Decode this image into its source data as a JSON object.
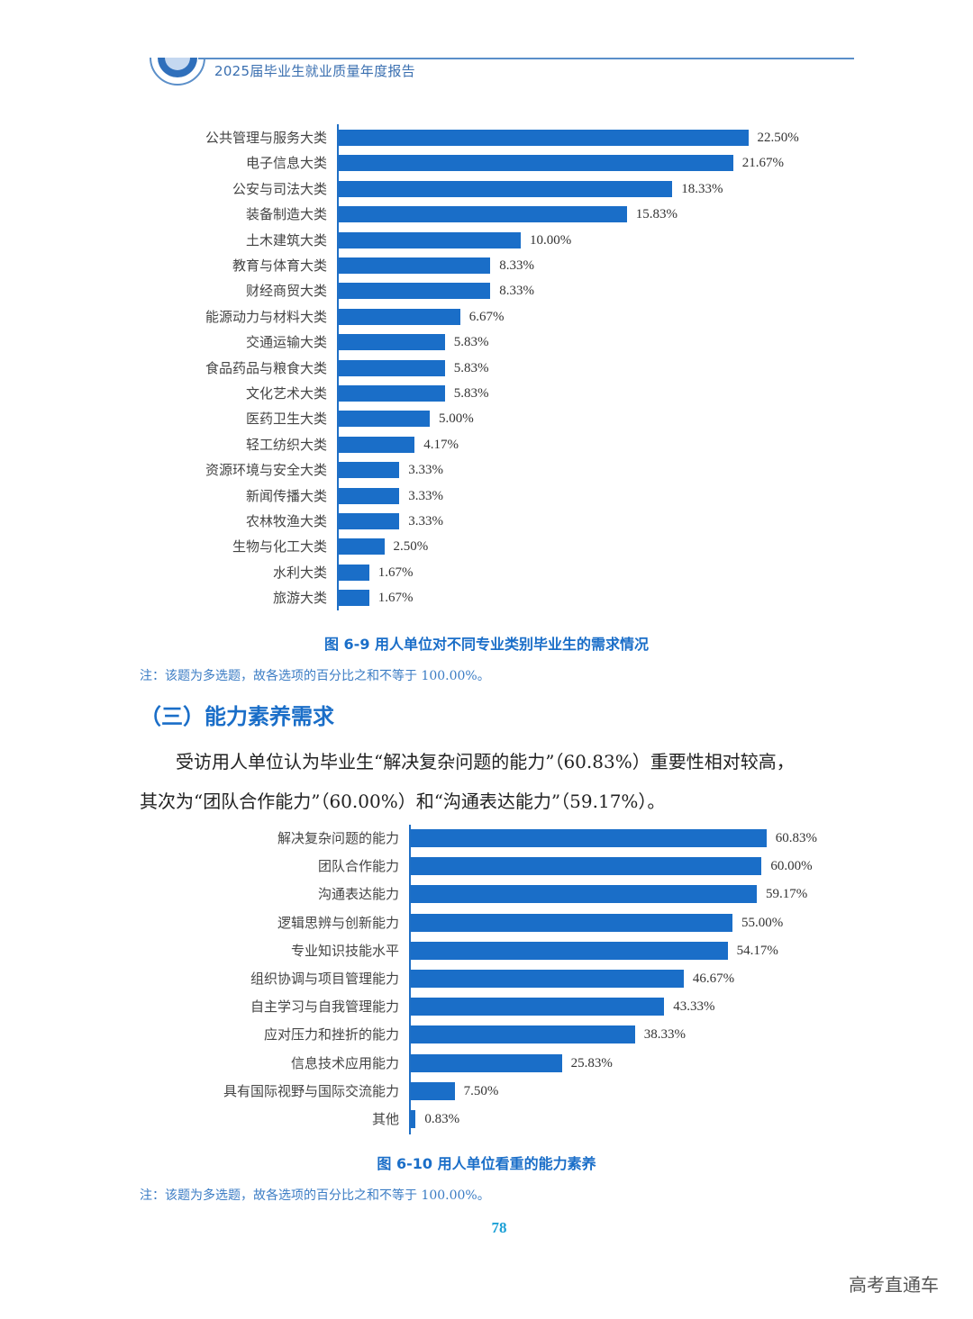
{
  "header": {
    "title": "2025届毕业生就业质量年度报告",
    "accent_color": "#1a6ec8"
  },
  "chart_data": [
    {
      "type": "bar",
      "orientation": "horizontal",
      "title": "图 6-9  用人单位对不同专业类别毕业生的需求情况",
      "xlabel": "",
      "ylabel": "",
      "grid": false,
      "legend": null,
      "categories": [
        "公共管理与服务大类",
        "电子信息大类",
        "公安与司法大类",
        "装备制造大类",
        "土木建筑大类",
        "教育与体育大类",
        "财经商贸大类",
        "能源动力与材料大类",
        "交通运输大类",
        "食品药品与粮食大类",
        "文化艺术大类",
        "医药卫生大类",
        "轻工纺织大类",
        "资源环境与安全大类",
        "新闻传播大类",
        "农林牧渔大类",
        "生物与化工大类",
        "水利大类",
        "旅游大类"
      ],
      "values": [
        22.5,
        21.67,
        18.33,
        15.83,
        10.0,
        8.33,
        8.33,
        6.67,
        5.83,
        5.83,
        5.83,
        5.0,
        4.17,
        3.33,
        3.33,
        3.33,
        2.5,
        1.67,
        1.67
      ],
      "labels": [
        "22.50%",
        "21.67%",
        "18.33%",
        "15.83%",
        "10.00%",
        "8.33%",
        "8.33%",
        "6.67%",
        "5.83%",
        "5.83%",
        "5.83%",
        "5.00%",
        "4.17%",
        "3.33%",
        "3.33%",
        "3.33%",
        "2.50%",
        "1.67%",
        "1.67%"
      ],
      "unit": "%",
      "color": "#1a6ec8"
    },
    {
      "type": "bar",
      "orientation": "horizontal",
      "title": "图 6-10  用人单位看重的能力素养",
      "xlabel": "",
      "ylabel": "",
      "grid": false,
      "legend": null,
      "categories": [
        "解决复杂问题的能力",
        "团队合作能力",
        "沟通表达能力",
        "逻辑思辨与创新能力",
        "专业知识技能水平",
        "组织协调与项目管理能力",
        "自主学习与自我管理能力",
        "应对压力和挫折的能力",
        "信息技术应用能力",
        "具有国际视野与国际交流能力",
        "其他"
      ],
      "values": [
        60.83,
        60.0,
        59.17,
        55.0,
        54.17,
        46.67,
        43.33,
        38.33,
        25.83,
        7.5,
        0.83
      ],
      "labels": [
        "60.83%",
        "60.00%",
        "59.17%",
        "55.00%",
        "54.17%",
        "46.67%",
        "43.33%",
        "38.33%",
        "25.83%",
        "7.50%",
        "0.83%"
      ],
      "unit": "%",
      "color": "#1a6ec8"
    }
  ],
  "figures": {
    "fig1_caption": "图 6-9  用人单位对不同专业类别毕业生的需求情况",
    "fig1_note": "注：该题为多选题，故各选项的百分比之和不等于 100.00%。",
    "fig2_caption": "图 6-10  用人单位看重的能力素养",
    "fig2_note": "注：该题为多选题，故各选项的百分比之和不等于 100.00%。"
  },
  "section": {
    "title": "（三）能力素养需求",
    "paragraph_line1": "　　受访用人单位认为毕业生“解决复杂问题的能力”（60.83%）重要性相对较高，",
    "paragraph_line2": "其次为“团队合作能力”（60.00%）和“沟通表达能力”（59.17%）。"
  },
  "footer": {
    "page_number": "78",
    "watermark": "高考直通车"
  }
}
